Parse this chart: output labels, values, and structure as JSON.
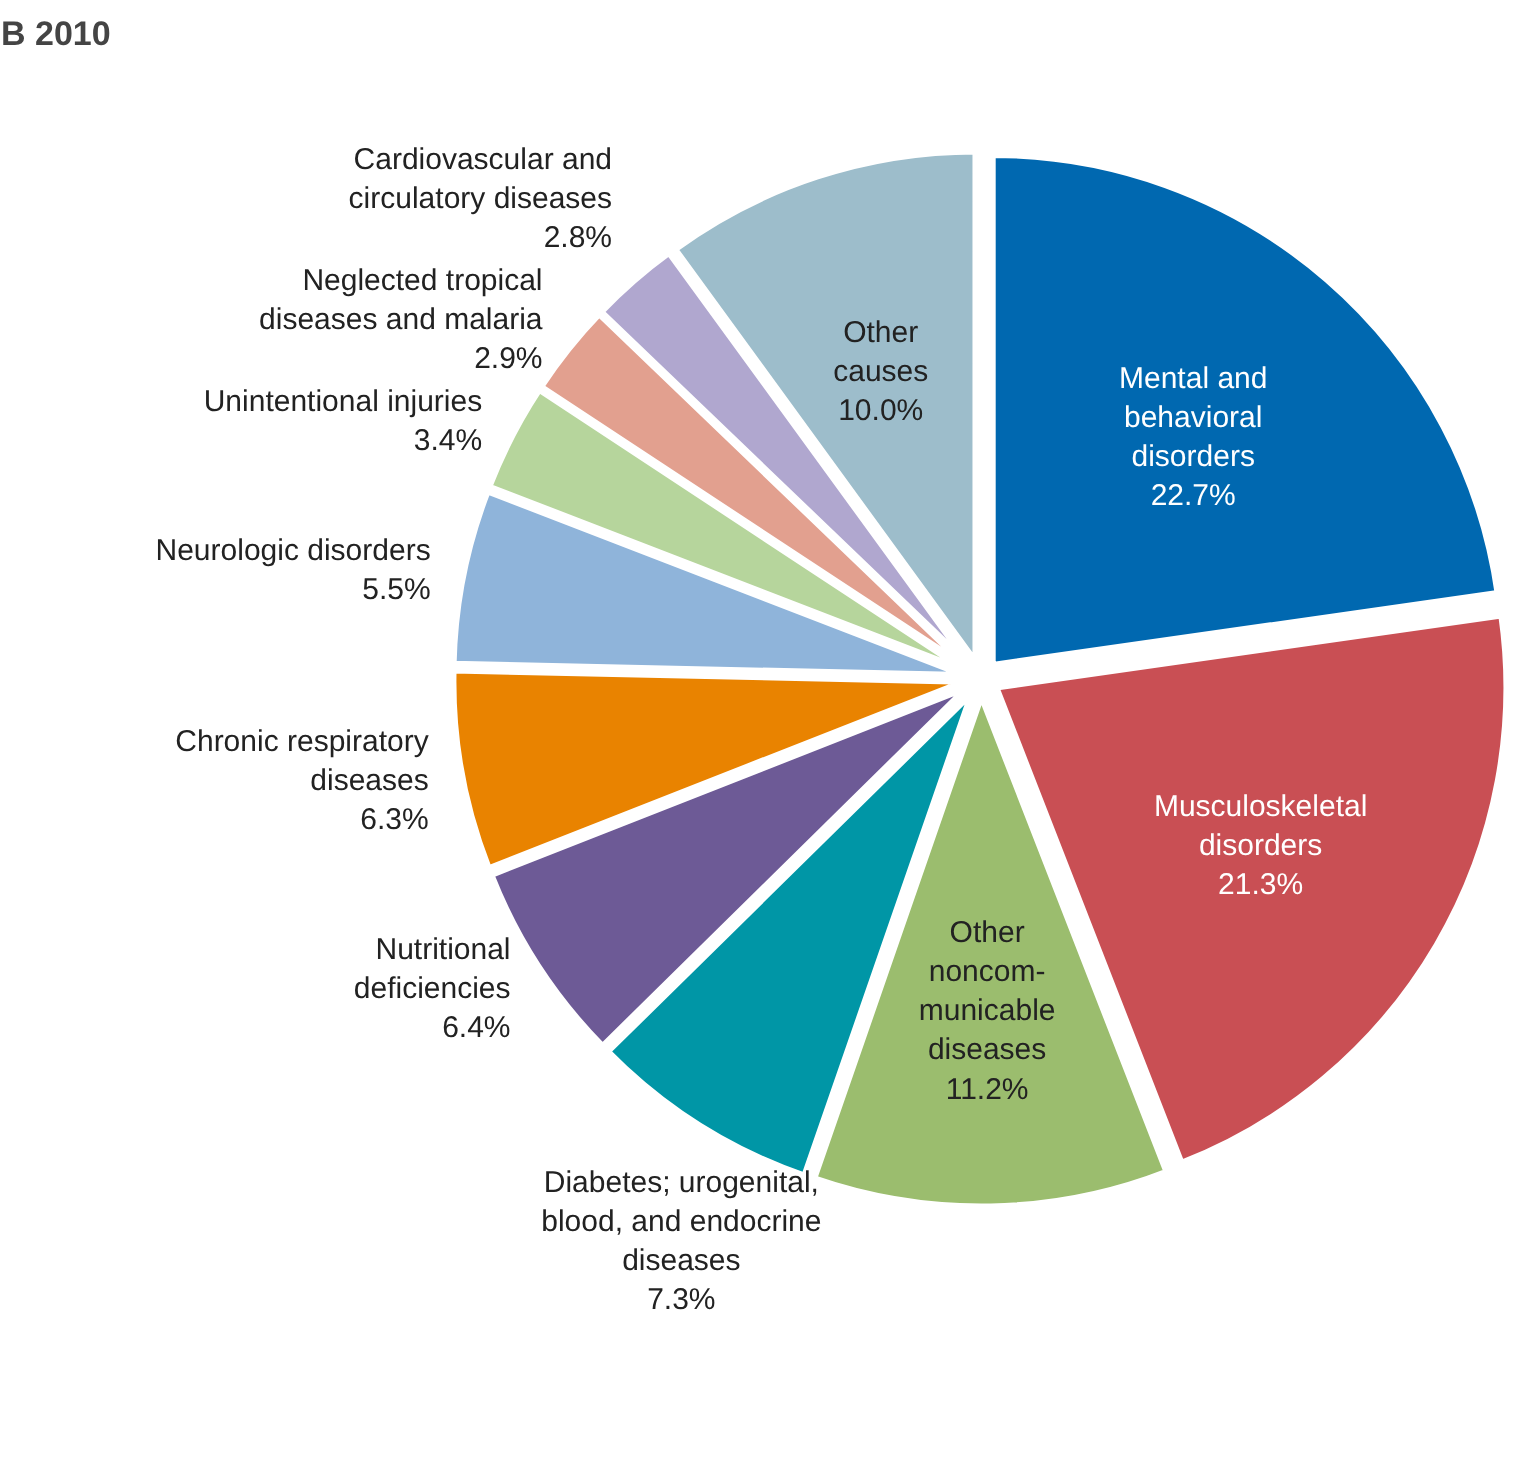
{
  "chart_data": {
    "type": "pie",
    "title": "B  2010",
    "categories": [
      "Mental and\nbehavioral\ndisorders",
      "Musculoskeletal\ndisorders",
      "Other\nnoncom-\nmunicable\ndiseases",
      "Diabetes; urogenital,\nblood, and endocrine\ndiseases",
      "Nutritional\ndeficiencies",
      "Chronic respiratory\ndiseases",
      "Neurologic disorders",
      "Unintentional injuries",
      "Neglected tropical\ndiseases and malaria",
      "Cardiovascular and\ncirculatory diseases",
      "Other\ncauses"
    ],
    "values": [
      22.7,
      21.3,
      11.2,
      7.3,
      6.4,
      6.3,
      5.5,
      3.4,
      2.9,
      2.8,
      10.0
    ],
    "value_labels": [
      "22.7%",
      "21.3%",
      "11.2%",
      "7.3%",
      "6.4%",
      "6.3%",
      "5.5%",
      "3.4%",
      "2.9%",
      "2.8%",
      "10.0%"
    ],
    "colors": [
      "#0068b0",
      "#c94f54",
      "#9bbd6e",
      "#0096a6",
      "#6d5a96",
      "#e98300",
      "#8fb4da",
      "#b6d59c",
      "#e2a08f",
      "#b0a7cf",
      "#9dbdcb"
    ]
  }
}
